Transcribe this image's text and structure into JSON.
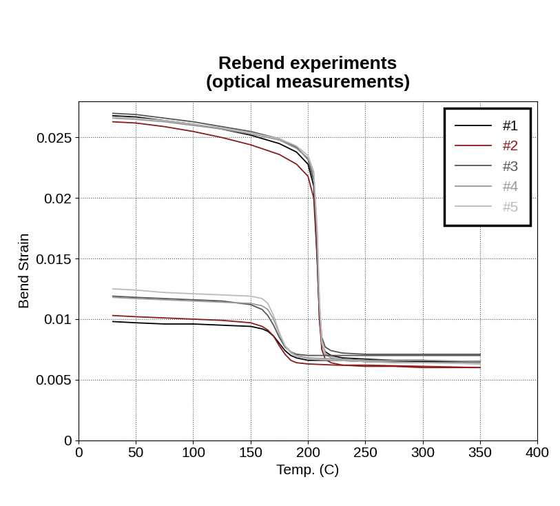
{
  "chart_data": {
    "type": "line",
    "title": "Rebend experiments\n(optical measurements)",
    "x_label": "Temp. (C)",
    "y_label": "Bend Strain",
    "xlim": [
      0,
      400
    ],
    "xticks": [
      0,
      50,
      100,
      150,
      200,
      250,
      300,
      350,
      400
    ],
    "ylim": [
      0,
      0.028
    ],
    "yticks": [
      0,
      0.005,
      0.01,
      0.015,
      0.02,
      0.025
    ],
    "grid": true,
    "legend": "upper right",
    "series": [
      {
        "name": "#1",
        "color": "#000000",
        "x": [
          30,
          50,
          75,
          100,
          125,
          150,
          175,
          190,
          200,
          205,
          208,
          210,
          212,
          215,
          220,
          230,
          250,
          275,
          300,
          325,
          350
        ],
        "values": [
          0.0268,
          0.0267,
          0.0264,
          0.0261,
          0.0257,
          0.0252,
          0.0245,
          0.0238,
          0.0228,
          0.021,
          0.015,
          0.01,
          0.008,
          0.0073,
          0.007,
          0.0068,
          0.0067,
          0.0066,
          0.0066,
          0.0065,
          0.0065
        ]
      },
      {
        "name": "#2",
        "color": "#8b1a1a",
        "x": [
          30,
          50,
          75,
          100,
          125,
          150,
          175,
          190,
          200,
          205,
          208,
          210,
          212,
          215,
          220,
          230,
          250,
          275,
          300,
          325,
          350
        ],
        "values": [
          0.0263,
          0.0262,
          0.0259,
          0.0255,
          0.025,
          0.0244,
          0.0236,
          0.0228,
          0.0218,
          0.02,
          0.015,
          0.01,
          0.0075,
          0.0067,
          0.0064,
          0.0062,
          0.0061,
          0.0061,
          0.006,
          0.006,
          0.006
        ]
      },
      {
        "name": "#3",
        "color": "#555555",
        "x": [
          30,
          50,
          75,
          100,
          125,
          150,
          175,
          190,
          200,
          205,
          208,
          210,
          212,
          215,
          220,
          230,
          250,
          275,
          300,
          325,
          350
        ],
        "values": [
          0.027,
          0.0269,
          0.0266,
          0.0263,
          0.0259,
          0.0255,
          0.0249,
          0.0242,
          0.0232,
          0.0215,
          0.016,
          0.011,
          0.0085,
          0.0077,
          0.0074,
          0.0072,
          0.0071,
          0.0071,
          0.0071,
          0.0071,
          0.0071
        ]
      },
      {
        "name": "#4",
        "color": "#999999",
        "x": [
          30,
          50,
          75,
          100,
          125,
          150,
          175,
          190,
          200,
          205,
          208,
          210,
          212,
          215,
          220,
          230,
          250,
          275,
          300,
          325,
          350
        ],
        "values": [
          0.0266,
          0.0265,
          0.0263,
          0.026,
          0.0257,
          0.0253,
          0.0248,
          0.0241,
          0.0233,
          0.022,
          0.017,
          0.011,
          0.008,
          0.0071,
          0.0068,
          0.0066,
          0.0065,
          0.0064,
          0.0064,
          0.0064,
          0.0064
        ]
      },
      {
        "name": "#5",
        "color": "#bbbbbb",
        "x": [
          30,
          50,
          75,
          100,
          125,
          150,
          175,
          190,
          200,
          205,
          208,
          210,
          212,
          215,
          220,
          230,
          250,
          275,
          300,
          325,
          350
        ],
        "values": [
          0.0267,
          0.0266,
          0.0264,
          0.0261,
          0.0258,
          0.0254,
          0.0249,
          0.0243,
          0.0235,
          0.0222,
          0.0175,
          0.0115,
          0.0082,
          0.0072,
          0.0069,
          0.0067,
          0.0066,
          0.0065,
          0.0065,
          0.0064,
          0.0063
        ]
      },
      {
        "color": "#000000",
        "x": [
          30,
          50,
          75,
          100,
          125,
          150,
          160,
          165,
          170,
          175,
          180,
          185,
          190,
          200,
          225,
          250,
          300,
          350
        ],
        "values": [
          0.0098,
          0.0097,
          0.0096,
          0.0096,
          0.0095,
          0.0094,
          0.0092,
          0.009,
          0.0086,
          0.008,
          0.0074,
          0.007,
          0.0068,
          0.0066,
          0.0066,
          0.0065,
          0.0065,
          0.0065
        ]
      },
      {
        "color": "#8b1a1a",
        "x": [
          30,
          50,
          75,
          100,
          125,
          150,
          160,
          165,
          170,
          175,
          180,
          185,
          190,
          200,
          225,
          250,
          300,
          350
        ],
        "values": [
          0.0103,
          0.0102,
          0.0101,
          0.01,
          0.0099,
          0.0097,
          0.0094,
          0.0091,
          0.0086,
          0.0078,
          0.0071,
          0.0066,
          0.0064,
          0.0063,
          0.0062,
          0.0062,
          0.0061,
          0.006
        ]
      },
      {
        "color": "#555555",
        "x": [
          30,
          50,
          75,
          100,
          125,
          150,
          160,
          165,
          170,
          175,
          180,
          185,
          190,
          200,
          225,
          250,
          300,
          350
        ],
        "values": [
          0.0119,
          0.0118,
          0.0117,
          0.0116,
          0.0115,
          0.0112,
          0.0108,
          0.0103,
          0.0095,
          0.0085,
          0.0077,
          0.0073,
          0.0071,
          0.007,
          0.007,
          0.007,
          0.007,
          0.007
        ]
      },
      {
        "color": "#999999",
        "x": [
          30,
          50,
          75,
          100,
          125,
          150,
          160,
          165,
          170,
          175,
          180,
          185,
          190,
          200,
          225,
          250,
          300,
          350
        ],
        "values": [
          0.0118,
          0.0117,
          0.0116,
          0.0115,
          0.0114,
          0.0113,
          0.0111,
          0.0108,
          0.01,
          0.0088,
          0.0078,
          0.0073,
          0.007,
          0.0068,
          0.0067,
          0.0066,
          0.0066,
          0.0065
        ]
      },
      {
        "color": "#bbbbbb",
        "x": [
          30,
          50,
          75,
          100,
          125,
          150,
          160,
          165,
          170,
          175,
          180,
          185,
          190,
          200,
          225,
          250,
          300,
          350
        ],
        "values": [
          0.0125,
          0.0124,
          0.0122,
          0.0121,
          0.012,
          0.0119,
          0.0117,
          0.0113,
          0.0103,
          0.0089,
          0.0078,
          0.0072,
          0.0069,
          0.0067,
          0.0066,
          0.0065,
          0.0064,
          0.0063
        ]
      }
    ]
  }
}
